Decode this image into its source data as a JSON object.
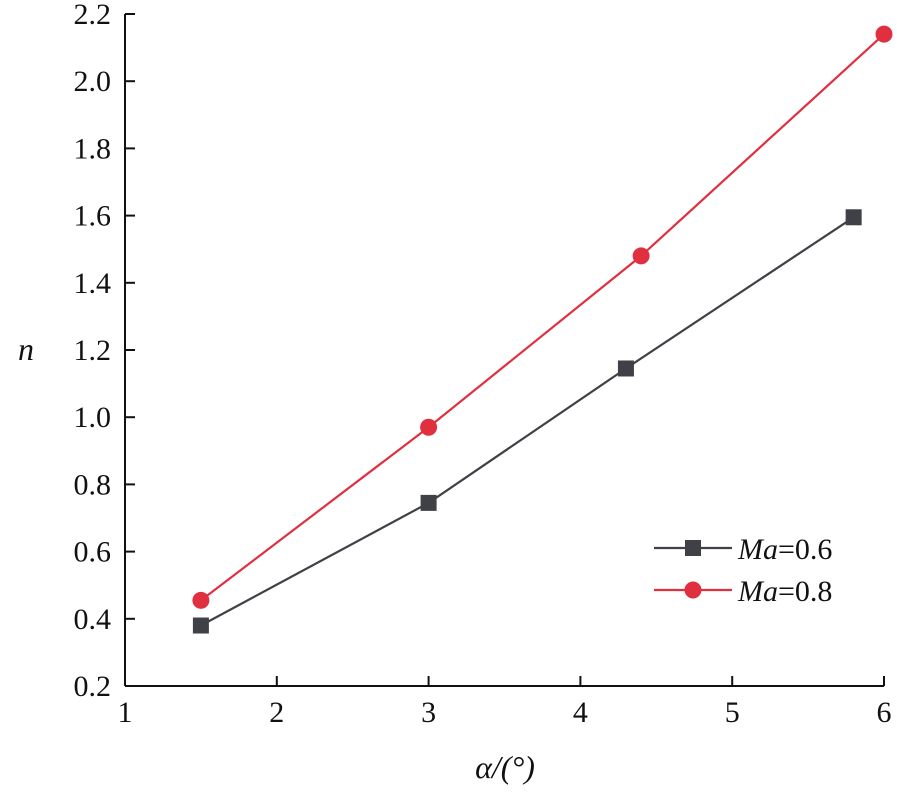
{
  "chart_data": {
    "type": "line",
    "title": "",
    "xlabel": "α/(°)",
    "ylabel": "n",
    "xlim": [
      1,
      6
    ],
    "ylim": [
      0.2,
      2.2
    ],
    "x_ticks": [
      1,
      2,
      3,
      4,
      5,
      6
    ],
    "y_ticks": [
      0.2,
      0.4,
      0.6,
      0.8,
      1.0,
      1.2,
      1.4,
      1.6,
      1.8,
      2.0,
      2.2
    ],
    "x_tick_labels": [
      "1",
      "2",
      "3",
      "4",
      "5",
      "6"
    ],
    "y_tick_labels": [
      "0.2",
      "0.4",
      "0.6",
      "0.8",
      "1.0",
      "1.2",
      "1.4",
      "1.6",
      "1.8",
      "2.0",
      "2.2"
    ],
    "grid": false,
    "legend_position": "bottom-right",
    "series": [
      {
        "name": "Ma=0.6",
        "name_italic": "Ma",
        "name_rest": "=0.6",
        "marker": "square",
        "color": "#3f4147",
        "x": [
          1.5,
          3.0,
          4.3,
          5.8
        ],
        "y": [
          0.38,
          0.745,
          1.145,
          1.595
        ]
      },
      {
        "name": "Ma=0.8",
        "name_italic": "Ma",
        "name_rest": "=0.8",
        "marker": "circle",
        "color": "#e03040",
        "x": [
          1.5,
          3.0,
          4.4,
          6.0
        ],
        "y": [
          0.455,
          0.97,
          1.48,
          2.14
        ]
      }
    ]
  }
}
